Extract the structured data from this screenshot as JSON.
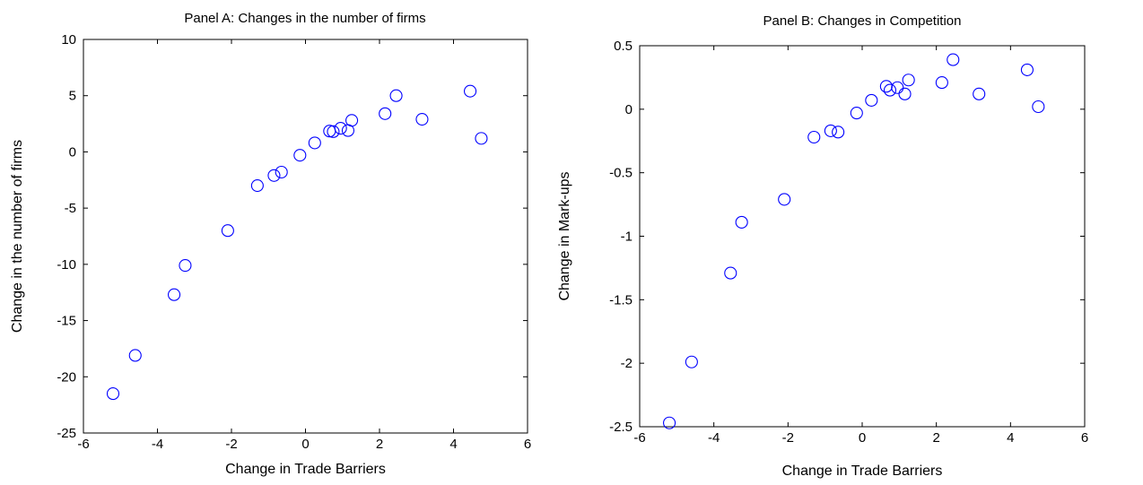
{
  "chart_data": [
    {
      "type": "scatter",
      "title": "Panel A: Changes in the number of firms",
      "xlabel": "Change in Trade Barriers",
      "ylabel": "Change in the number of firms",
      "xlim": [
        -6,
        6
      ],
      "ylim": [
        -25,
        10
      ],
      "xticks": [
        "-6",
        "-4",
        "-2",
        "0",
        "2",
        "4",
        "6"
      ],
      "yticks": [
        "-25",
        "-20",
        "-15",
        "-10",
        "-5",
        "0",
        "5",
        "10"
      ],
      "marker_color": "#0000ff",
      "grid": false,
      "points": [
        {
          "x": -5.2,
          "y": -21.5
        },
        {
          "x": -4.6,
          "y": -18.1
        },
        {
          "x": -3.55,
          "y": -12.7
        },
        {
          "x": -3.25,
          "y": -10.1
        },
        {
          "x": -2.1,
          "y": -7.0
        },
        {
          "x": -1.3,
          "y": -3.0
        },
        {
          "x": -0.85,
          "y": -2.1
        },
        {
          "x": -0.65,
          "y": -1.8
        },
        {
          "x": -0.15,
          "y": -0.3
        },
        {
          "x": 0.25,
          "y": 0.8
        },
        {
          "x": 0.65,
          "y": 1.85
        },
        {
          "x": 0.75,
          "y": 1.8
        },
        {
          "x": 0.95,
          "y": 2.1
        },
        {
          "x": 1.15,
          "y": 1.9
        },
        {
          "x": 1.25,
          "y": 2.8
        },
        {
          "x": 2.15,
          "y": 3.4
        },
        {
          "x": 2.45,
          "y": 5.0
        },
        {
          "x": 3.15,
          "y": 2.9
        },
        {
          "x": 4.45,
          "y": 5.4
        },
        {
          "x": 4.75,
          "y": 1.2
        }
      ]
    },
    {
      "type": "scatter",
      "title": "Panel B: Changes in Competition",
      "xlabel": "Change in Trade Barriers",
      "ylabel": "Change in Mark-ups",
      "xlim": [
        -6,
        6
      ],
      "ylim": [
        -2.5,
        0.5
      ],
      "xticks": [
        "-6",
        "-4",
        "-2",
        "0",
        "2",
        "4",
        "6"
      ],
      "yticks": [
        "-2.5",
        "-2",
        "-1.5",
        "-1",
        "-0.5",
        "0",
        "0.5"
      ],
      "marker_color": "#0000ff",
      "grid": false,
      "points": [
        {
          "x": -5.2,
          "y": -2.47
        },
        {
          "x": -4.6,
          "y": -1.99
        },
        {
          "x": -3.55,
          "y": -1.29
        },
        {
          "x": -3.25,
          "y": -0.89
        },
        {
          "x": -2.1,
          "y": -0.71
        },
        {
          "x": -1.3,
          "y": -0.22
        },
        {
          "x": -0.85,
          "y": -0.17
        },
        {
          "x": -0.65,
          "y": -0.18
        },
        {
          "x": -0.15,
          "y": -0.03
        },
        {
          "x": 0.25,
          "y": 0.07
        },
        {
          "x": 0.65,
          "y": 0.18
        },
        {
          "x": 0.75,
          "y": 0.15
        },
        {
          "x": 0.95,
          "y": 0.17
        },
        {
          "x": 1.15,
          "y": 0.12
        },
        {
          "x": 1.25,
          "y": 0.23
        },
        {
          "x": 2.15,
          "y": 0.21
        },
        {
          "x": 2.45,
          "y": 0.39
        },
        {
          "x": 3.15,
          "y": 0.12
        },
        {
          "x": 4.45,
          "y": 0.31
        },
        {
          "x": 4.75,
          "y": 0.02
        }
      ]
    }
  ]
}
